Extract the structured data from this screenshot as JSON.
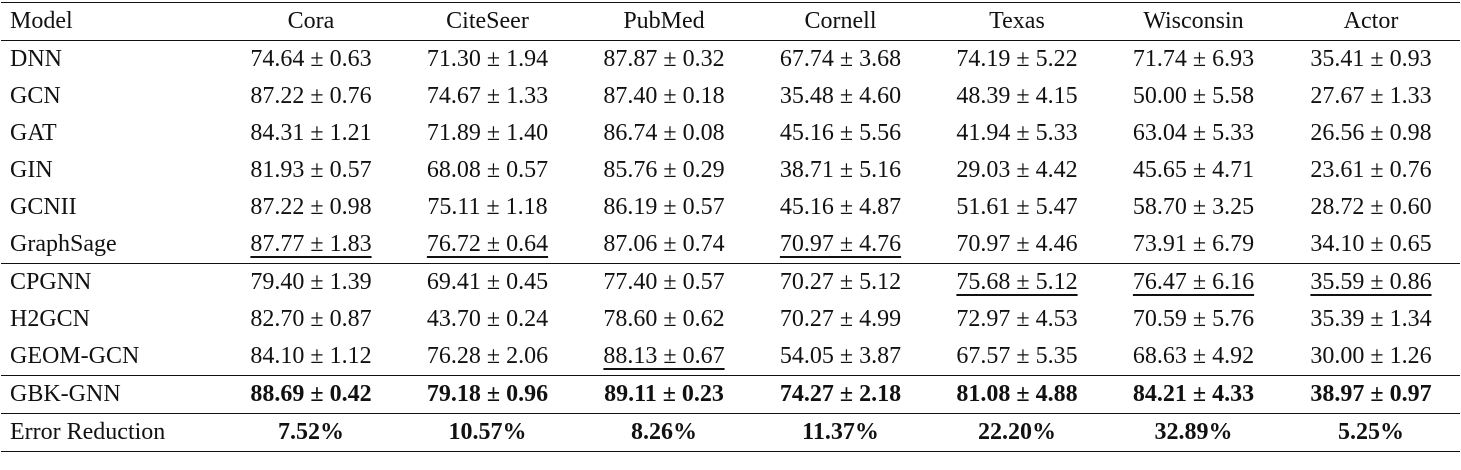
{
  "table": {
    "header": [
      "Model",
      "Cora",
      "CiteSeer",
      "PubMed",
      "Cornell",
      "Texas",
      "Wisconsin",
      "Actor"
    ],
    "rows": [
      [
        "DNN",
        "74.64 ± 0.63",
        "71.30 ± 1.94",
        "87.87 ± 0.32",
        "67.74 ± 3.68",
        "74.19 ± 5.22",
        "71.74 ± 6.93",
        "35.41 ± 0.93"
      ],
      [
        "GCN",
        "87.22 ± 0.76",
        "74.67 ± 1.33",
        "87.40 ± 0.18",
        "35.48 ± 4.60",
        "48.39 ± 4.15",
        "50.00 ± 5.58",
        "27.67 ± 1.33"
      ],
      [
        "GAT",
        "84.31 ± 1.21",
        "71.89 ± 1.40",
        "86.74 ± 0.08",
        "45.16 ± 5.56",
        "41.94 ± 5.33",
        "63.04 ± 5.33",
        "26.56 ± 0.98"
      ],
      [
        "GIN",
        "81.93 ± 0.57",
        "68.08 ± 0.57",
        "85.76 ± 0.29",
        "38.71 ± 5.16",
        "29.03 ± 4.42",
        "45.65 ± 4.71",
        "23.61 ± 0.76"
      ],
      [
        "GCNII",
        "87.22 ± 0.98",
        "75.11 ± 1.18",
        "86.19 ± 0.57",
        "45.16 ± 4.87",
        "51.61 ± 5.47",
        "58.70 ± 3.25",
        "28.72 ± 0.60"
      ],
      [
        "GraphSage",
        "87.77 ± 1.83",
        "76.72 ± 0.64",
        "87.06 ± 0.74",
        "70.97 ± 4.76",
        "70.97 ± 4.46",
        "73.91 ± 6.79",
        "34.10 ± 0.65"
      ],
      [
        "CPGNN",
        "79.40 ± 1.39",
        "69.41 ± 0.45",
        "77.40 ± 0.57",
        "70.27 ± 5.12",
        "75.68 ± 5.12",
        "76.47 ± 6.16",
        "35.59 ± 0.86"
      ],
      [
        "H2GCN",
        "82.70 ± 0.87",
        "43.70 ± 0.24",
        "78.60 ± 0.62",
        "70.27 ± 4.99",
        "72.97 ± 4.53",
        "70.59 ± 5.76",
        "35.39 ± 1.34"
      ],
      [
        "GEOM-GCN",
        "84.10 ± 1.12",
        "76.28 ± 2.06",
        "88.13 ± 0.67",
        "54.05 ± 3.87",
        "67.57 ± 5.35",
        "68.63 ± 4.92",
        "30.00 ± 1.26"
      ],
      [
        "GBK-GNN",
        "88.69 ± 0.42",
        "79.18 ± 0.96",
        "89.11 ± 0.23",
        "74.27 ± 2.18",
        "81.08 ± 4.88",
        "84.21 ± 4.33",
        "38.97 ± 0.97"
      ],
      [
        "Error Reduction",
        "7.52%",
        "10.57%",
        "8.26%",
        "11.37%",
        "22.20%",
        "32.89%",
        "5.25%"
      ]
    ]
  }
}
